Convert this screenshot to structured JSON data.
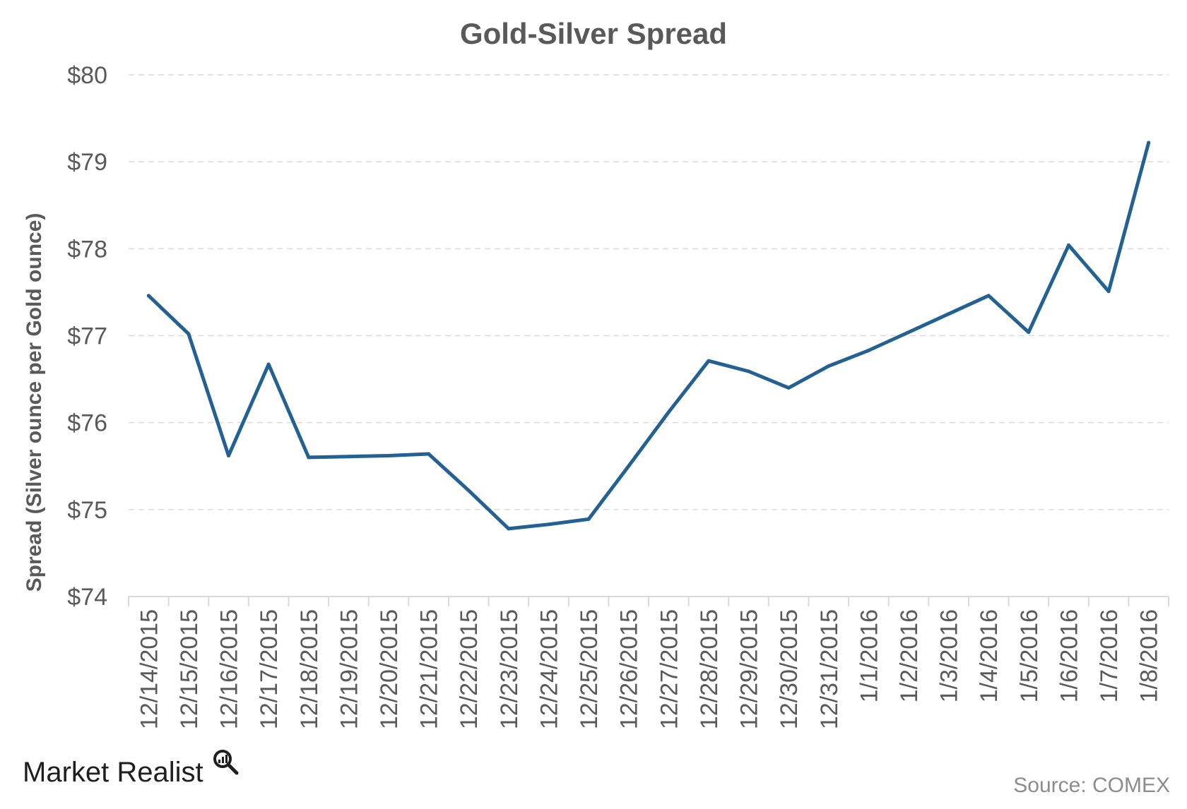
{
  "chart_data": {
    "type": "line",
    "title": "Gold-Silver Spread",
    "xlabel": "",
    "ylabel": "Spread (Silver ounce per Gold ounce)",
    "ylim": [
      74,
      80
    ],
    "yticks": [
      "$74",
      "$75",
      "$76",
      "$77",
      "$78",
      "$79",
      "$80"
    ],
    "grid": true,
    "categories": [
      "12/14/2015",
      "12/15/2015",
      "12/16/2015",
      "12/17/2015",
      "12/18/2015",
      "12/19/2015",
      "12/20/2015",
      "12/21/2015",
      "12/22/2015",
      "12/23/2015",
      "12/24/2015",
      "12/25/2015",
      "12/26/2015",
      "12/27/2015",
      "12/28/2015",
      "12/29/2015",
      "12/30/2015",
      "12/31/2015",
      "1/1/2016",
      "1/2/2016",
      "1/3/2016",
      "1/4/2016",
      "1/5/2016",
      "1/6/2016",
      "1/7/2016",
      "1/8/2016"
    ],
    "series": [
      {
        "values": [
          77.46,
          77.02,
          75.62,
          76.67,
          75.6,
          75.61,
          75.62,
          75.64,
          75.22,
          74.78,
          74.83,
          74.89,
          75.5,
          76.12,
          76.71,
          76.59,
          76.4,
          76.65,
          76.83,
          77.04,
          77.25,
          77.46,
          77.04,
          78.04,
          77.51,
          79.22
        ],
        "color": "#236192"
      }
    ]
  },
  "branding": {
    "logo_text": "Market Realist",
    "source": "Source: COMEX"
  }
}
